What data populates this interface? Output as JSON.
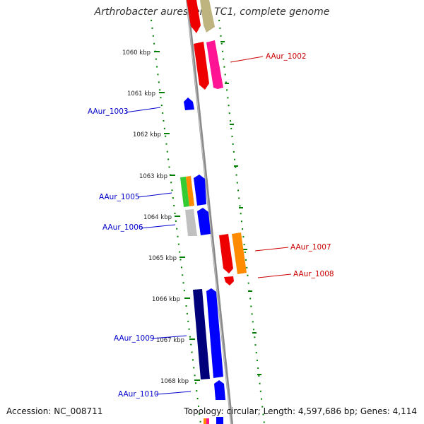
{
  "title": "Arthrobacter aurescens TC1, complete genome",
  "footer": {
    "accession": "Accession: NC_008711",
    "summary": "Topology: circular; Length: 4,597,686 bp; Genes: 4,114"
  },
  "ticks": [
    "1060 kbp",
    "1061 kbp",
    "1062 kbp",
    "1063 kbp",
    "1064 kbp",
    "1065 kbp",
    "1066 kbp",
    "1067 kbp",
    "1068 kbp"
  ],
  "gene_labels": {
    "AAur_1002": "AAur_1002",
    "AAur_1003": "AAur_1003",
    "AAur_1005": "AAur_1005",
    "AAur_1006": "AAur_1006",
    "AAur_1007": "AAur_1007",
    "AAur_1008": "AAur_1008",
    "AAur_1009": "AAur_1009",
    "AAur_1010": "AAur_1010"
  },
  "colors": {
    "forward_label": "#cc0000",
    "reverse_label": "#0000cc",
    "backbone": "#888888",
    "tick": "#008000",
    "red": "#ff0000",
    "magenta": "#ff1493",
    "olive": "#c8c080",
    "blue": "#0000ff",
    "navy": "#00007a",
    "green": "#33cc33",
    "orange": "#ff8c00",
    "gray": "#c0c0c0"
  }
}
